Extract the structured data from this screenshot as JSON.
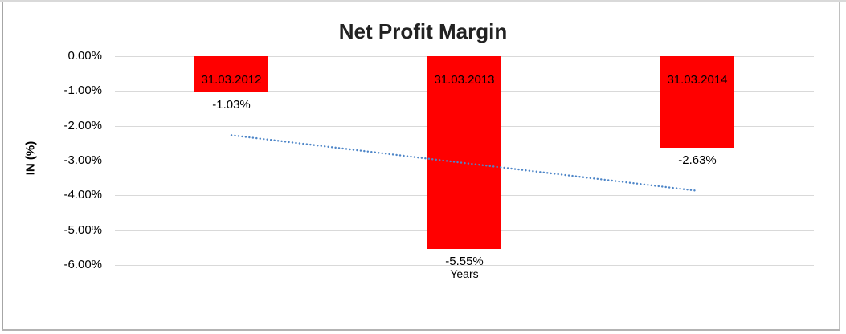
{
  "chart_data": {
    "type": "bar",
    "title": "Net Profit Margin",
    "xlabel": "Years",
    "ylabel": "IN (%)",
    "categories": [
      "31.03.2012",
      "31.03.2013",
      "31.03.2014"
    ],
    "values": [
      -1.03,
      -5.55,
      -2.63
    ],
    "data_labels": [
      "-1.03%",
      "-5.55%",
      "-2.63%"
    ],
    "yticks": [
      0,
      -1,
      -2,
      -3,
      -4,
      -5,
      -6
    ],
    "ytick_labels": [
      "0.00%",
      "-1.00%",
      "-2.00%",
      "-3.00%",
      "-4.00%",
      "-5.00%",
      "-6.00%"
    ],
    "ylim": [
      -6.5,
      0.3
    ],
    "grid": true,
    "legend": "none",
    "bar_color": "#ff0000",
    "gridline_color": "#d9d9d9",
    "label_color": "#000000",
    "trendline": {
      "type": "linear",
      "style": "dotted",
      "color": "#4e86c8",
      "start_value": -2.27,
      "end_value": -3.87
    }
  }
}
